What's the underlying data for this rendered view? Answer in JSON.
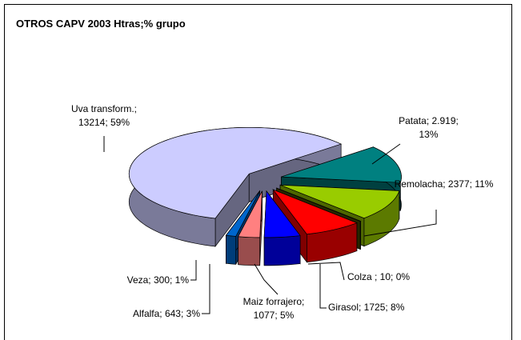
{
  "chart_data": {
    "type": "pie",
    "title": "OTROS CAPV 2003 Htras;% grupo",
    "categories": [
      "Patata",
      "Remolacha",
      "Colza",
      "Girasol",
      "Maiz forrajero",
      "Alfalfa",
      "Veza",
      "Uva transform."
    ],
    "values": [
      2919,
      2377,
      10,
      1725,
      1077,
      643,
      300,
      13214
    ],
    "value_labels": [
      "Patata; 2.919; 13%",
      "Remolacha; 2377; 11%",
      "Colza ; 10; 0%",
      "Girasol; 1725; 8%",
      "Maiz forrajero; 1077; 5%",
      "Alfalfa; 643; 3%",
      "Veza; 300; 1%",
      "Uva transform.; 13214; 59%"
    ],
    "colors": [
      "#008080",
      "#99cc00",
      "#4d4d00",
      "#ff0000",
      "#0000ff",
      "#ff8080",
      "#0066cc",
      "#ccccff"
    ]
  }
}
